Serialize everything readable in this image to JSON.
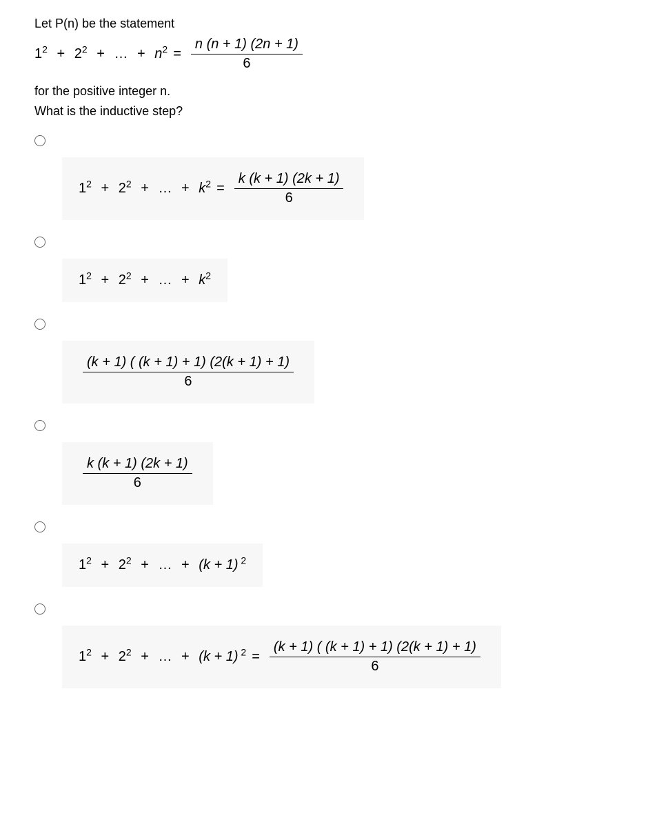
{
  "intro": {
    "line1": "Let P(n) be the statement",
    "lhs_terms": [
      "1",
      "2",
      "n"
    ],
    "lhs_exp": "2",
    "rhs_num": "n (n + 1) (2n + 1)",
    "rhs_den": "6",
    "line2": "for the positive integer n.",
    "line3": "What is the inductive step?"
  },
  "options": [
    {
      "type": "eq_with_frac",
      "lhs_terms": [
        "1",
        "2",
        "k"
      ],
      "lhs_exp": "2",
      "rhs_num": "k (k + 1) (2k + 1)",
      "rhs_den": "6"
    },
    {
      "type": "lhs_only",
      "lhs_terms": [
        "1",
        "2",
        "k"
      ],
      "lhs_exp": "2"
    },
    {
      "type": "frac_only",
      "num": "(k + 1) ( (k + 1) + 1) (2(k + 1) + 1)",
      "den": "6"
    },
    {
      "type": "frac_only",
      "num": "k (k + 1) (2k + 1)",
      "den": "6"
    },
    {
      "type": "lhs_only_paren",
      "lhs_terms": [
        "1",
        "2"
      ],
      "lhs_exp": "2",
      "last_term": "(k + 1)"
    },
    {
      "type": "eq_with_frac_paren",
      "lhs_terms": [
        "1",
        "2"
      ],
      "lhs_exp": "2",
      "last_term": "(k + 1)",
      "rhs_num": "(k + 1) ( (k + 1) + 1) (2(k + 1) + 1)",
      "rhs_den": "6"
    }
  ],
  "styling": {
    "option_bg": "#f7f7f7",
    "body_bg": "#ffffff",
    "text_color": "#000000",
    "font_family": "Arial, Helvetica, sans-serif",
    "radio_border": "#666666"
  }
}
